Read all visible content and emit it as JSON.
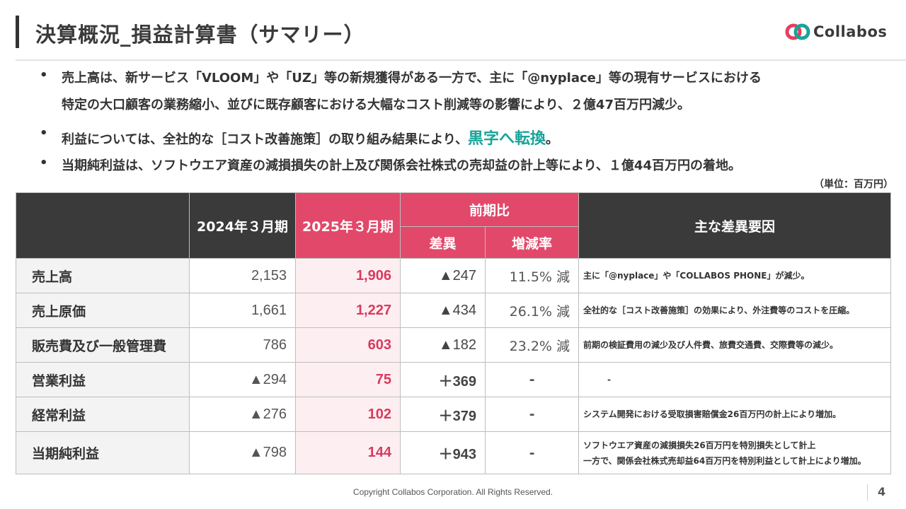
{
  "header": {
    "title": "決算概況_損益計算書（サマリー）",
    "logo_text": "Collabos",
    "logo_colors": {
      "red": "#e83e5e",
      "teal": "#1aa39a"
    }
  },
  "bullets": [
    {
      "dot": "•",
      "line1": "売上高は、新サービス「VLOOM」や「UZ」等の新規獲得がある一方で、主に「@nyplace」等の現有サービスにおける",
      "line2": "特定の大口顧客の業務縮小、並びに既存顧客における大幅なコスト削減等の影響により、２億47百万円減少。"
    },
    {
      "dot": "•",
      "text": "利益については、全社的な［コスト改善施策］の取り組み結果により、",
      "highlight": "黒字へ転換",
      "suffix": "。"
    },
    {
      "dot": "•",
      "text": "当期純利益は、ソフトウエア資産の減損損失の計上及び関係会社株式の売却益の計上等により、１億44百万円の着地。"
    }
  ],
  "unit_label": "（単位：百万円）",
  "table": {
    "headers": {
      "fy2024": "2024年３月期",
      "fy2025": "2025年３月期",
      "comparison": "前期比",
      "diff": "差異",
      "rate": "増減率",
      "reasons": "主な差異要因"
    },
    "rows": [
      {
        "label": "売上高",
        "fy2024": "2,153",
        "fy2025": "1,906",
        "diff": "▲247",
        "rate": "11.5% 減",
        "note1": "主に「@nyplace」や「COLLABOS PHONE」が減少。",
        "note2": ""
      },
      {
        "label": "売上原価",
        "fy2024": "1,661",
        "fy2025": "1,227",
        "diff": "▲434",
        "rate": "26.1% 減",
        "note1": "全社的な［コスト改善施策］の効果により、外注費等のコストを圧縮。",
        "note2": ""
      },
      {
        "label": "販売費及び一般管理費",
        "fy2024": "786",
        "fy2025": "603",
        "diff": "▲182",
        "rate": "23.2% 減",
        "note1": "前期の検証費用の減少及び人件費、旅費交通費、交際費等の減少。",
        "note2": ""
      },
      {
        "label": "営業利益",
        "fy2024": "▲294",
        "fy2025": "75",
        "diff": "＋369",
        "rate": "-",
        "note1": "-",
        "note2": ""
      },
      {
        "label": "経常利益",
        "fy2024": "▲276",
        "fy2025": "102",
        "diff": "＋379",
        "rate": "-",
        "note1": "システム開発における受取損害賠償金26百万円の計上により増加。",
        "note2": ""
      },
      {
        "label": "当期純利益",
        "fy2024": "▲798",
        "fy2025": "144",
        "diff": "＋943",
        "rate": "-",
        "note1": "ソフトウエア資産の減損損失26百万円を特別損失として計上",
        "note2": "一方で、関係会社株式売却益64百万円を特別利益として計上により増加。"
      }
    ]
  },
  "footer": {
    "copyright": "Copyright Collabos Corporation. All Rights Reserved.",
    "page_number": "4"
  }
}
